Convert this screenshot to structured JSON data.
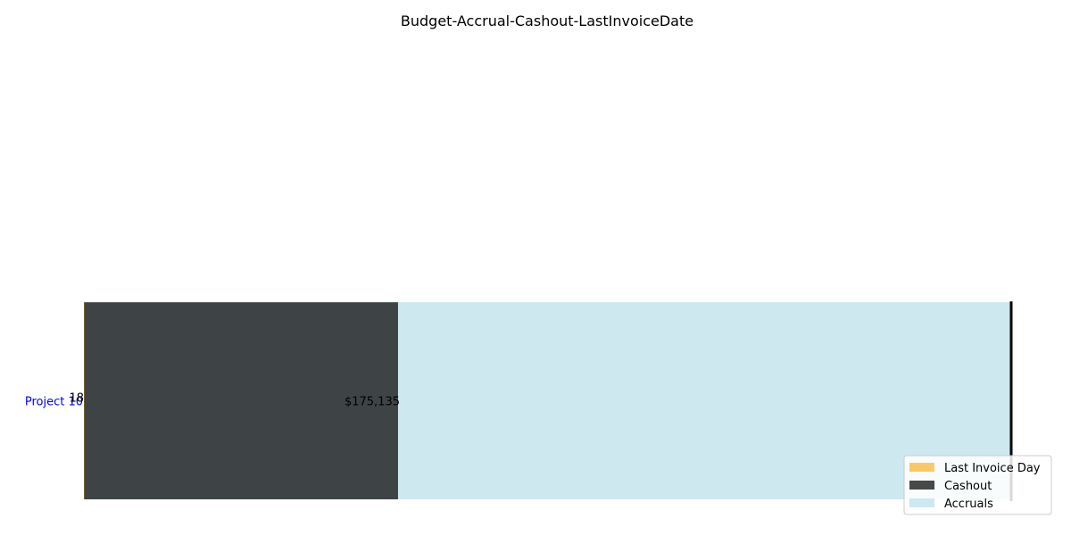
{
  "chart_data": {
    "type": "bar",
    "orientation": "horizontal",
    "title": "Budget-Accrual-Cashout-LastInvoiceDate",
    "xlabel": "",
    "ylabel": "",
    "categories": [
      "Project 10"
    ],
    "xlim": [
      0,
      517000
    ],
    "series": [
      {
        "name": "Accruals",
        "values": [
          517000
        ],
        "color": "#add8e6"
      },
      {
        "name": "Cashout",
        "values": [
          175135
        ],
        "color": "#1a1a1a"
      },
      {
        "name": "Last Invoice Day",
        "values": [
          18
        ],
        "color": "#ffa500"
      }
    ],
    "budget_marker": [
      517000
    ],
    "data_labels": [
      "$175,135"
    ],
    "last_invoice_labels": [
      "18"
    ],
    "legend": {
      "placement": "lower-right",
      "entries": [
        "Last Invoice Day",
        "Cashout",
        "Accruals"
      ]
    },
    "colors": {
      "tick_label": "#0000ff",
      "budget_marker": "#000000"
    },
    "grid": false
  }
}
